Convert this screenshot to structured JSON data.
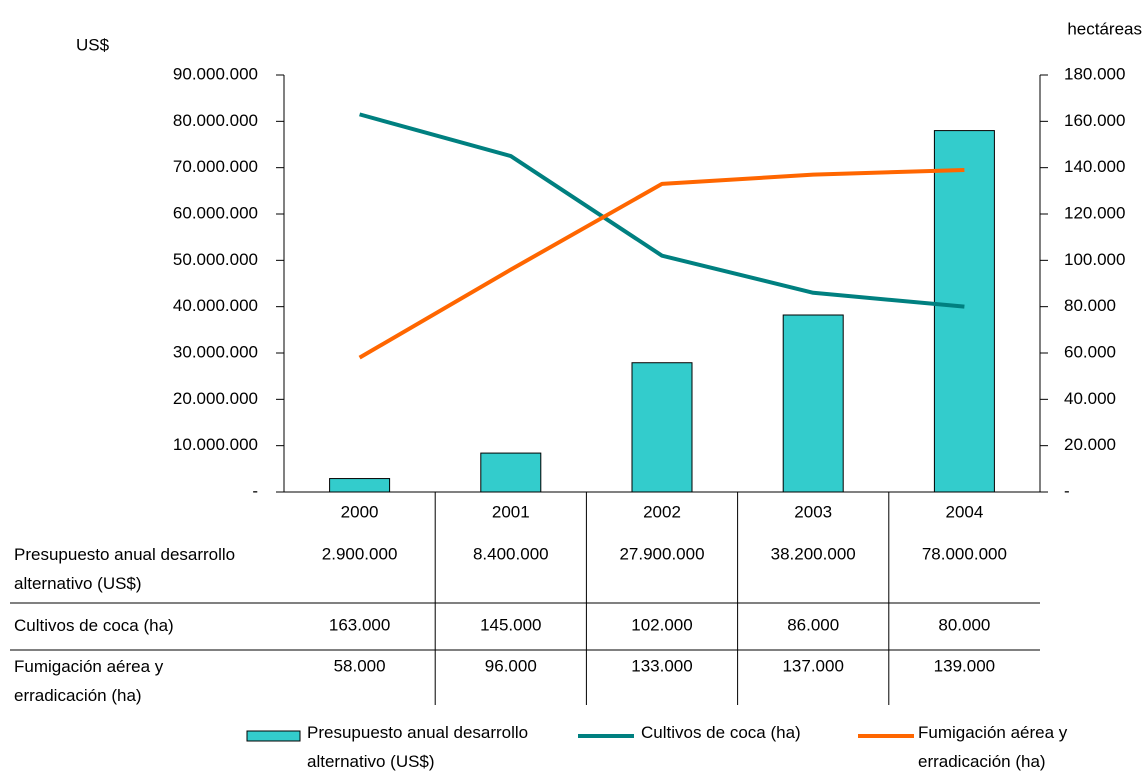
{
  "chart_data": {
    "type": "bar",
    "y_label": "US$",
    "y2_label": "hectáreas",
    "categories": [
      "2000",
      "2001",
      "2002",
      "2003",
      "2004"
    ],
    "series": [
      {
        "name": "Presupuesto anual desarrollo alternativo (US$)",
        "type": "bar",
        "color": "#33cccc",
        "values": [
          2900000,
          8400000,
          27900000,
          38200000,
          78000000
        ],
        "value_labels": [
          "2.900.000",
          "8.400.000",
          "27.900.000",
          "38.200.000",
          "78.000.000"
        ]
      },
      {
        "name": "Cultivos de coca (ha)",
        "type": "line",
        "axis": "y2",
        "color": "#008080",
        "values": [
          163000,
          145000,
          102000,
          86000,
          80000
        ],
        "value_labels": [
          "163.000",
          "145.000",
          "102.000",
          "86.000",
          "80.000"
        ]
      },
      {
        "name": "Fumigación aérea y erradicación (ha)",
        "type": "line",
        "axis": "y2",
        "color": "#ff6600",
        "values": [
          58000,
          96000,
          133000,
          137000,
          139000
        ],
        "value_labels": [
          "58.000",
          "96.000",
          "133.000",
          "137.000",
          "139.000"
        ]
      }
    ],
    "ylim": [
      0,
      90000000
    ],
    "yticks": [
      {
        "value": 0,
        "label": "-"
      },
      {
        "value": 10000000,
        "label": "10.000.000"
      },
      {
        "value": 20000000,
        "label": "20.000.000"
      },
      {
        "value": 30000000,
        "label": "30.000.000"
      },
      {
        "value": 40000000,
        "label": "40.000.000"
      },
      {
        "value": 50000000,
        "label": "50.000.000"
      },
      {
        "value": 60000000,
        "label": "60.000.000"
      },
      {
        "value": 70000000,
        "label": "70.000.000"
      },
      {
        "value": 80000000,
        "label": "80.000.000"
      },
      {
        "value": 90000000,
        "label": "90.000.000"
      }
    ],
    "y2lim": [
      0,
      180000
    ],
    "y2ticks": [
      {
        "value": 0,
        "label": "-"
      },
      {
        "value": 20000,
        "label": "20.000"
      },
      {
        "value": 40000,
        "label": "40.000"
      },
      {
        "value": 60000,
        "label": "60.000"
      },
      {
        "value": 80000,
        "label": "80.000"
      },
      {
        "value": 100000,
        "label": "100.000"
      },
      {
        "value": 120000,
        "label": "120.000"
      },
      {
        "value": 140000,
        "label": "140.000"
      },
      {
        "value": 160000,
        "label": "160.000"
      },
      {
        "value": 180000,
        "label": "180.000"
      }
    ],
    "grid": false,
    "legend": "bottom"
  }
}
